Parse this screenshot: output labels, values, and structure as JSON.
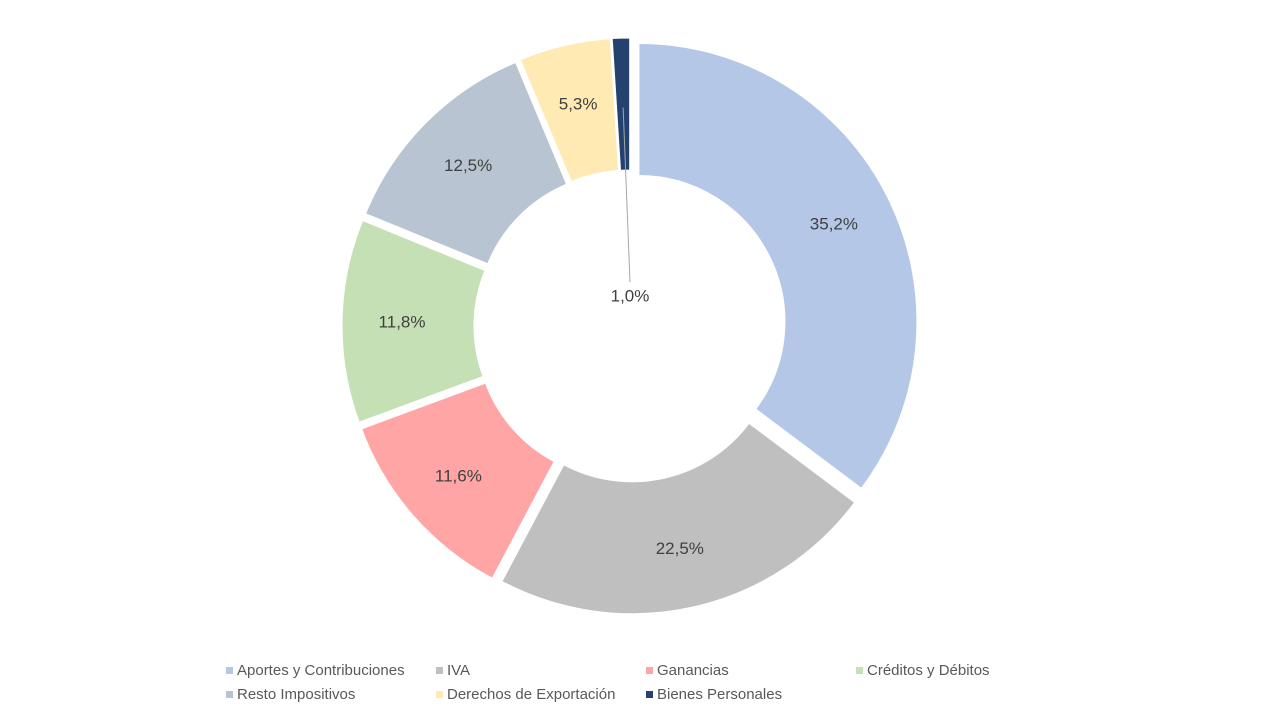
{
  "chart_data": {
    "type": "pie",
    "title": "",
    "donut": true,
    "legend_position": "bottom",
    "series": [
      {
        "name": "Aportes y Contribuciones",
        "value": 35.2,
        "label": "35,2%",
        "color": "#b4c7e7"
      },
      {
        "name": "IVA",
        "value": 22.5,
        "label": "22,5%",
        "color": "#bfbfbf"
      },
      {
        "name": "Ganancias",
        "value": 11.6,
        "label": "11,6%",
        "color": "#ffa5a5"
      },
      {
        "name": "Créditos y Débitos",
        "value": 11.8,
        "label": "11,8%",
        "color": "#c5e0b4"
      },
      {
        "name": "Resto Impositivos",
        "value": 12.5,
        "label": "12,5%",
        "color": "#b8c4d2"
      },
      {
        "name": "Derechos de Exportación",
        "value": 5.3,
        "label": "5,3%",
        "color": "#ffeab4"
      },
      {
        "name": "Bienes Personales",
        "value": 1.0,
        "label": "1,0%",
        "color": "#24416f"
      }
    ]
  }
}
